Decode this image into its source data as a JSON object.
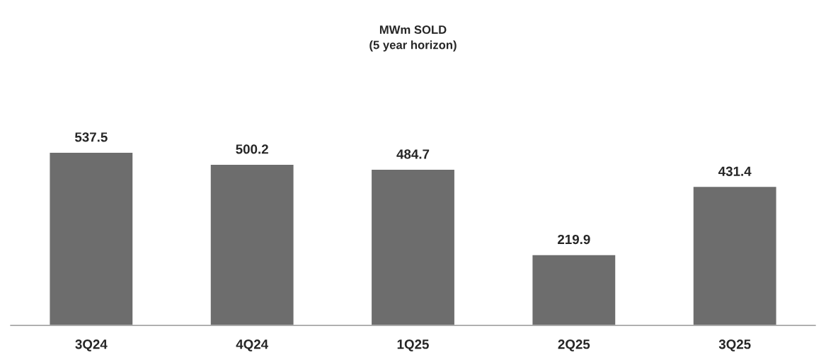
{
  "chart_data": {
    "type": "bar",
    "title": "MWm SOLD\n(5 year horizon)",
    "categories": [
      "3Q24",
      "4Q24",
      "1Q25",
      "2Q25",
      "3Q25"
    ],
    "values": [
      537.5,
      500.2,
      484.7,
      219.9,
      431.4
    ],
    "color": "#6d6d6d",
    "data_labels": true,
    "grid": false,
    "legend": false,
    "tick_labels": "x"
  }
}
